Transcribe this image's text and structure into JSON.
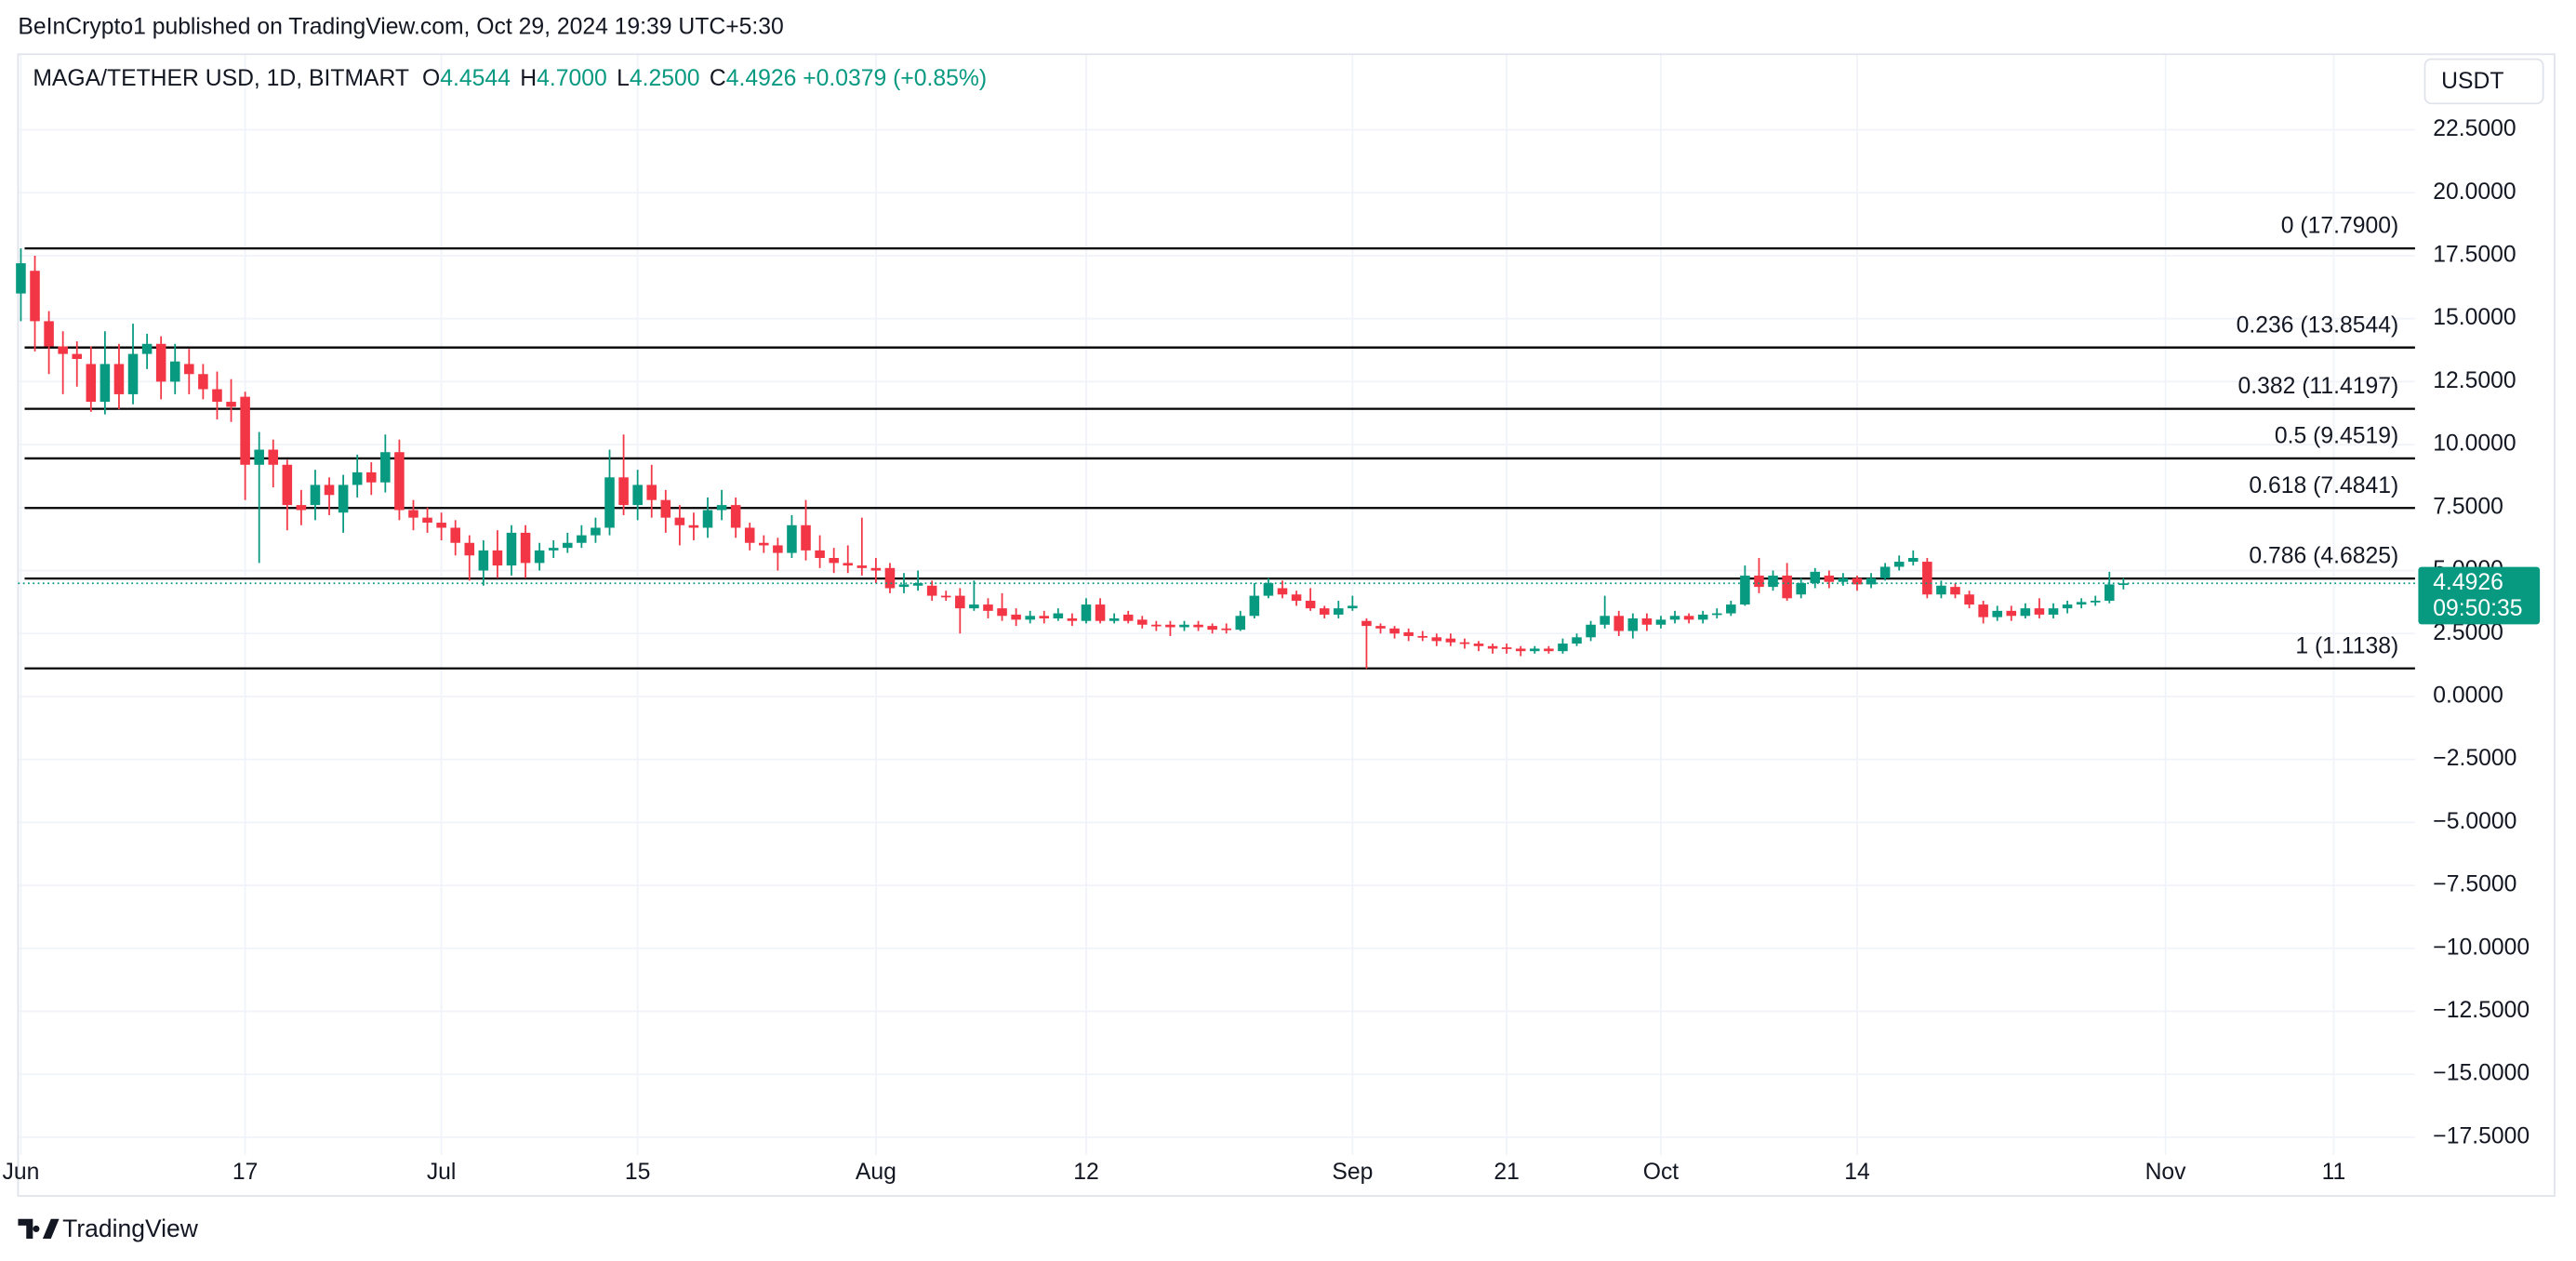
{
  "header": {
    "published": "BeInCrypto1 published on TradingView.com, Oct 29, 2024 19:39 UTC+5:30"
  },
  "footer": {
    "brand": "TradingView"
  },
  "chart_data": {
    "type": "candlestick",
    "currency": "USDT",
    "legend": {
      "symbol": "MAGA/TETHER USD, 1D, BITMART",
      "items": [
        {
          "key": "O",
          "value": "4.4544"
        },
        {
          "key": "H",
          "value": "4.7000"
        },
        {
          "key": "L",
          "value": "4.2500"
        },
        {
          "key": "C",
          "value": "4.4926"
        }
      ],
      "change": "+0.0379 (+0.85%)"
    },
    "countdown": "09:50:35",
    "up_color": "#089981",
    "down_color": "#f23645",
    "fib_color": "#000000",
    "grid": true,
    "x": [
      0,
      1,
      2,
      3,
      4,
      5,
      6,
      7,
      8,
      9,
      10,
      11,
      12,
      13,
      14,
      15,
      16,
      17,
      18,
      19,
      20,
      21,
      22,
      23,
      24,
      25,
      26,
      27,
      28,
      29,
      30,
      31,
      32,
      33,
      34,
      35,
      36,
      37,
      38,
      39,
      40,
      41,
      42,
      43,
      44,
      45,
      46,
      47,
      48,
      49,
      50,
      51,
      52,
      53,
      54,
      55,
      56,
      57,
      58,
      59,
      60,
      61,
      62,
      63,
      64,
      65,
      66,
      67,
      68,
      69,
      70,
      71,
      72,
      73,
      74,
      75,
      76,
      77,
      78,
      79,
      80,
      81,
      82,
      83,
      84,
      85,
      86,
      87,
      88,
      89,
      90,
      91,
      92,
      93,
      94,
      95,
      96,
      97,
      98,
      99,
      100,
      101,
      102,
      103,
      104,
      105,
      106,
      107,
      108,
      109,
      110,
      111,
      112,
      113,
      114,
      115,
      116,
      117,
      118,
      119,
      120,
      121,
      122,
      123,
      124,
      125,
      126,
      127,
      128,
      129,
      130,
      131,
      132,
      133,
      134,
      135,
      136,
      137,
      138,
      139,
      140,
      141,
      142,
      143,
      144,
      145,
      146,
      147,
      148,
      149,
      150
    ],
    "open": [
      16.0,
      16.9,
      14.9,
      13.9,
      13.6,
      13.2,
      11.7,
      13.2,
      12.0,
      13.6,
      14.0,
      12.5,
      13.2,
      12.8,
      12.2,
      11.7,
      11.9,
      9.2,
      9.8,
      9.2,
      7.6,
      7.6,
      8.4,
      7.3,
      8.4,
      8.9,
      8.5,
      9.7,
      7.4,
      7.1,
      6.9,
      6.7,
      6.1,
      5.0,
      5.8,
      5.2,
      6.5,
      5.3,
      5.8,
      5.9,
      6.1,
      6.4,
      6.7,
      8.7,
      7.6,
      8.4,
      7.8,
      7.1,
      6.8,
      6.7,
      7.4,
      7.6,
      6.7,
      6.1,
      6.0,
      5.7,
      6.8,
      5.8,
      5.5,
      5.3,
      5.2,
      5.1,
      5.1,
      4.35,
      4.4,
      4.4,
      4.0,
      4.0,
      3.5,
      3.65,
      3.5,
      3.25,
      3.05,
      3.2,
      3.1,
      3.1,
      3.0,
      3.65,
      3.0,
      3.25,
      3.05,
      2.85,
      2.85,
      2.75,
      2.85,
      2.8,
      2.7,
      2.65,
      3.2,
      4.0,
      4.3,
      4.05,
      3.8,
      3.5,
      3.25,
      3.5,
      3.0,
      2.8,
      2.7,
      2.55,
      2.4,
      2.35,
      2.3,
      2.15,
      2.1,
      2.0,
      1.95,
      1.9,
      1.8,
      1.9,
      1.8,
      2.1,
      2.35,
      2.85,
      3.2,
      2.6,
      3.1,
      2.85,
      3.05,
      3.2,
      3.05,
      3.25,
      3.3,
      3.65,
      4.8,
      4.35,
      4.8,
      4.05,
      4.5,
      4.8,
      4.55,
      4.7,
      4.45,
      4.7,
      5.15,
      5.35,
      5.35,
      4.05,
      4.35,
      4.05,
      3.65,
      3.15,
      3.4,
      3.2,
      3.5,
      3.25,
      3.5,
      3.65,
      3.75,
      3.8,
      4.4544
    ],
    "high": [
      17.79,
      17.5,
      15.3,
      14.5,
      14.1,
      13.9,
      14.5,
      14.0,
      14.8,
      14.4,
      14.3,
      14.0,
      13.8,
      13.2,
      12.9,
      12.6,
      12.1,
      10.5,
      10.2,
      9.4,
      8.2,
      9.0,
      8.7,
      8.8,
      9.6,
      9.3,
      10.4,
      10.2,
      7.8,
      7.5,
      7.3,
      7.0,
      6.4,
      6.2,
      6.6,
      6.8,
      6.8,
      6.1,
      6.2,
      6.5,
      6.8,
      7.1,
      9.8,
      10.4,
      9.0,
      9.2,
      8.2,
      7.6,
      7.3,
      7.9,
      8.2,
      7.9,
      6.9,
      6.4,
      6.3,
      7.2,
      7.8,
      6.4,
      5.9,
      6.0,
      7.1,
      5.5,
      5.3,
      4.9,
      5.0,
      4.6,
      4.2,
      4.3,
      4.6,
      3.9,
      4.1,
      3.5,
      3.4,
      3.4,
      3.5,
      3.3,
      3.9,
      3.9,
      3.3,
      3.4,
      3.2,
      3.0,
      3.0,
      3.0,
      3.0,
      2.9,
      2.9,
      3.4,
      4.5,
      4.7,
      4.6,
      4.2,
      4.3,
      3.6,
      3.8,
      4.0,
      3.1,
      2.9,
      2.8,
      2.7,
      2.6,
      2.5,
      2.5,
      2.3,
      2.2,
      2.1,
      2.1,
      2.0,
      2.0,
      2.0,
      2.3,
      2.5,
      3.0,
      4.0,
      3.4,
      3.3,
      3.3,
      3.2,
      3.4,
      3.3,
      3.4,
      3.5,
      3.8,
      5.2,
      5.5,
      5.0,
      5.3,
      4.7,
      5.1,
      5.0,
      4.9,
      4.8,
      4.9,
      5.3,
      5.6,
      5.8,
      5.5,
      4.6,
      4.5,
      4.2,
      3.8,
      3.6,
      3.6,
      3.7,
      3.9,
      3.7,
      3.8,
      3.9,
      4.0,
      4.95,
      4.7
    ],
    "low": [
      14.9,
      13.7,
      12.8,
      12.0,
      12.3,
      11.3,
      11.2,
      11.4,
      11.6,
      13.0,
      11.8,
      12.0,
      12.0,
      11.8,
      11.0,
      10.9,
      7.8,
      5.3,
      8.3,
      6.6,
      6.8,
      7.0,
      7.2,
      6.5,
      7.9,
      8.0,
      8.1,
      7.0,
      6.6,
      6.5,
      6.2,
      5.6,
      4.6,
      4.4,
      4.7,
      4.8,
      4.7,
      5.0,
      5.5,
      5.7,
      5.9,
      6.1,
      6.4,
      7.2,
      7.0,
      7.1,
      6.5,
      6.0,
      6.2,
      6.3,
      7.0,
      6.3,
      5.8,
      5.7,
      5.0,
      5.5,
      5.4,
      5.1,
      4.9,
      4.9,
      4.8,
      4.5,
      4.1,
      4.1,
      4.2,
      3.8,
      3.8,
      2.5,
      3.4,
      3.1,
      3.0,
      2.8,
      2.9,
      2.9,
      3.0,
      2.8,
      2.9,
      2.9,
      2.9,
      2.9,
      2.7,
      2.6,
      2.4,
      2.6,
      2.6,
      2.5,
      2.5,
      2.6,
      3.1,
      3.9,
      3.9,
      3.6,
      3.4,
      3.1,
      3.1,
      3.4,
      1.1,
      2.5,
      2.3,
      2.2,
      2.2,
      2.0,
      2.0,
      1.9,
      1.8,
      1.7,
      1.7,
      1.6,
      1.7,
      1.7,
      1.7,
      2.0,
      2.2,
      2.7,
      2.4,
      2.3,
      2.6,
      2.7,
      2.9,
      2.9,
      2.9,
      3.1,
      3.2,
      3.6,
      4.1,
      4.2,
      3.8,
      3.9,
      4.3,
      4.3,
      4.4,
      4.2,
      4.3,
      4.6,
      5.0,
      5.2,
      3.9,
      3.9,
      3.9,
      3.5,
      2.9,
      3.0,
      3.0,
      3.1,
      3.1,
      3.1,
      3.3,
      3.5,
      3.6,
      3.7,
      4.25
    ],
    "close": [
      17.2,
      14.9,
      13.9,
      13.6,
      13.4,
      11.7,
      13.2,
      12.0,
      13.6,
      14.0,
      12.5,
      13.3,
      12.8,
      12.2,
      11.7,
      11.5,
      9.2,
      9.8,
      9.2,
      7.6,
      7.4,
      8.4,
      8.0,
      8.4,
      8.9,
      8.5,
      9.7,
      7.4,
      7.1,
      6.9,
      6.7,
      6.1,
      5.6,
      5.8,
      5.2,
      6.5,
      5.3,
      5.8,
      5.9,
      6.1,
      6.4,
      6.7,
      8.7,
      7.6,
      8.4,
      7.8,
      7.1,
      6.8,
      6.7,
      7.4,
      7.6,
      6.7,
      6.1,
      6.0,
      5.7,
      6.8,
      5.8,
      5.5,
      5.3,
      5.2,
      5.1,
      5.0,
      4.3,
      4.45,
      4.5,
      4.0,
      3.95,
      3.5,
      3.65,
      3.4,
      3.2,
      3.05,
      3.2,
      3.1,
      3.3,
      3.0,
      3.65,
      3.0,
      3.1,
      3.0,
      2.85,
      2.8,
      2.75,
      2.85,
      2.75,
      2.65,
      2.65,
      3.2,
      4.0,
      4.5,
      4.05,
      3.8,
      3.5,
      3.25,
      3.5,
      3.6,
      2.8,
      2.7,
      2.5,
      2.4,
      2.35,
      2.2,
      2.15,
      2.1,
      2.0,
      1.9,
      1.9,
      1.8,
      1.9,
      1.8,
      2.1,
      2.35,
      2.85,
      3.2,
      2.6,
      3.1,
      2.85,
      3.05,
      3.2,
      3.05,
      3.25,
      3.3,
      3.65,
      4.8,
      4.35,
      4.8,
      3.9,
      4.5,
      4.95,
      4.55,
      4.7,
      4.45,
      4.7,
      5.15,
      5.35,
      5.5,
      4.05,
      4.4,
      4.05,
      3.65,
      3.15,
      3.4,
      3.2,
      3.5,
      3.25,
      3.5,
      3.65,
      3.75,
      3.8,
      4.45,
      4.4926
    ],
    "fib_levels": [
      {
        "value": 17.79,
        "label": "0 (17.7900)"
      },
      {
        "value": 13.8544,
        "label": "0.236 (13.8544)"
      },
      {
        "value": 11.4197,
        "label": "0.382 (11.4197)"
      },
      {
        "value": 9.4519,
        "label": "0.5 (9.4519)"
      },
      {
        "value": 7.4841,
        "label": "0.618 (7.4841)"
      },
      {
        "value": 4.6825,
        "label": "0.786 (4.6825)"
      },
      {
        "value": 1.1138,
        "label": "1 (1.1138)"
      }
    ],
    "xlim": [
      -0.2,
      170.8
    ],
    "xticks": [
      {
        "value": 0,
        "label": "Jun"
      },
      {
        "value": 16,
        "label": "17"
      },
      {
        "value": 30,
        "label": "Jul"
      },
      {
        "value": 44,
        "label": "15"
      },
      {
        "value": 61,
        "label": "Aug"
      },
      {
        "value": 76,
        "label": "12"
      },
      {
        "value": 95,
        "label": "Sep"
      },
      {
        "value": 106,
        "label": "21"
      },
      {
        "value": 117,
        "label": "Oct"
      },
      {
        "value": 131,
        "label": "14"
      },
      {
        "value": 153,
        "label": "Nov"
      },
      {
        "value": 165,
        "label": "11"
      }
    ],
    "ylim": [
      -18.2,
      25.5
    ],
    "yticks": [
      {
        "value": 22.5,
        "label": "22.5000"
      },
      {
        "value": 20,
        "label": "20.0000"
      },
      {
        "value": 17.5,
        "label": "17.5000"
      },
      {
        "value": 15,
        "label": "15.0000"
      },
      {
        "value": 12.5,
        "label": "12.5000"
      },
      {
        "value": 10,
        "label": "10.0000"
      },
      {
        "value": 7.5,
        "label": "7.5000"
      },
      {
        "value": 5,
        "label": "5.0000"
      },
      {
        "value": 2.5,
        "label": "2.5000"
      },
      {
        "value": 0,
        "label": "0.0000"
      },
      {
        "value": -2.5,
        "label": "−2.5000"
      },
      {
        "value": -5,
        "label": "−5.0000"
      },
      {
        "value": -7.5,
        "label": "−7.5000"
      },
      {
        "value": -10,
        "label": "−10.0000"
      },
      {
        "value": -12.5,
        "label": "−12.5000"
      },
      {
        "value": -15,
        "label": "−15.0000"
      },
      {
        "value": -17.5,
        "label": "−17.5000"
      }
    ]
  }
}
